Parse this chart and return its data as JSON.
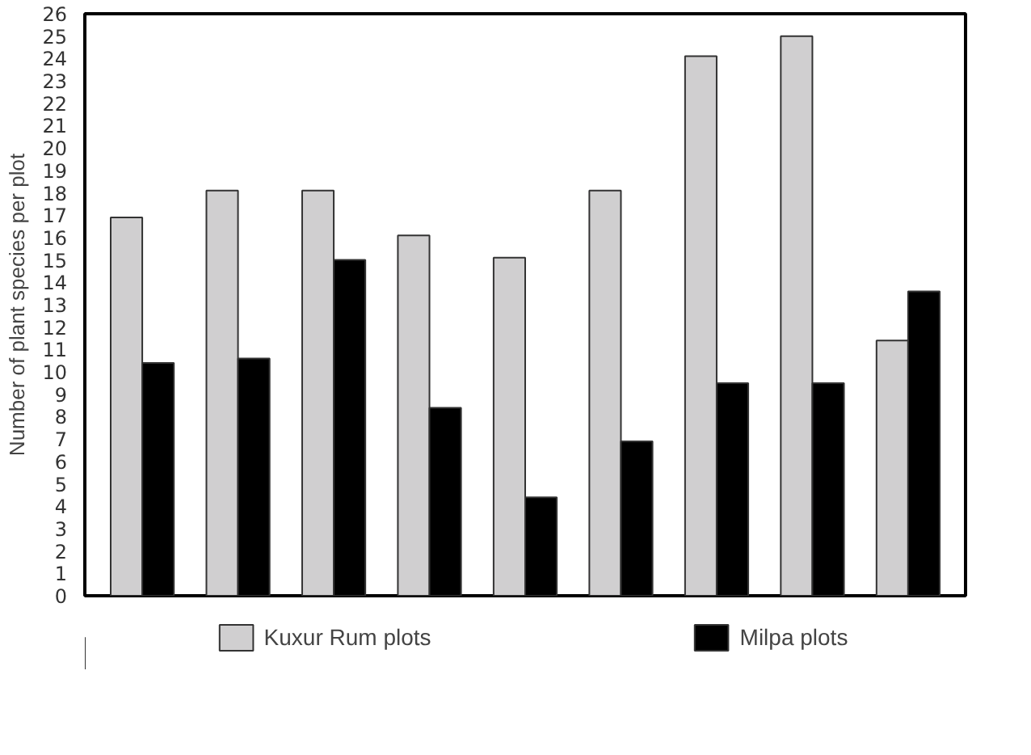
{
  "chart_data": {
    "type": "bar",
    "ylabel": "Number of plant species per plot",
    "categories": [
      null,
      null,
      null,
      null,
      null,
      null,
      null,
      null,
      null
    ],
    "series": [
      {
        "name": "Kuxur Rum plots",
        "color": "#d0cfd0",
        "values": [
          16.9,
          18.1,
          18.1,
          16.1,
          15.1,
          18.1,
          24.1,
          25.0,
          11.4
        ]
      },
      {
        "name": "Milpa plots",
        "color": "#000000",
        "values": [
          10.4,
          10.6,
          15.0,
          8.4,
          4.4,
          6.9,
          9.5,
          9.5,
          13.6
        ]
      }
    ],
    "ylim": [
      0,
      26
    ],
    "yticks": [
      0,
      1,
      2,
      3,
      4,
      5,
      6,
      7,
      8,
      9,
      10,
      11,
      12,
      13,
      14,
      15,
      16,
      17,
      18,
      19,
      20,
      21,
      22,
      23,
      24,
      25,
      26
    ],
    "grid": false,
    "legend": "bottom"
  }
}
